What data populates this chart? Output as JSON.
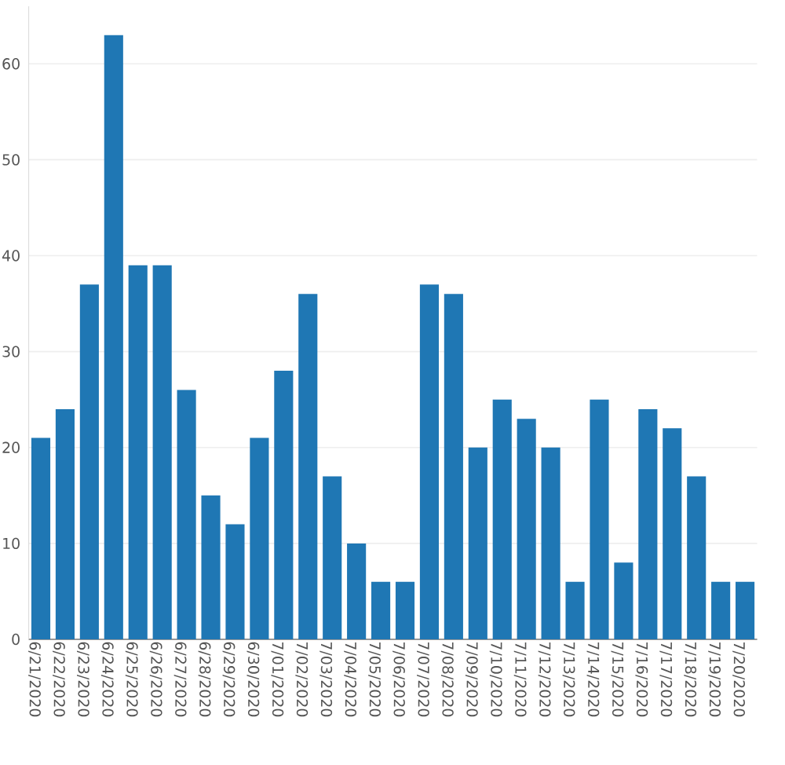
{
  "chart_data": {
    "type": "bar",
    "categories": [
      "6/21/2020",
      "6/22/2020",
      "6/23/2020",
      "6/24/2020",
      "6/25/2020",
      "6/26/2020",
      "6/27/2020",
      "6/28/2020",
      "6/29/2020",
      "6/30/2020",
      "7/01/2020",
      "7/02/2020",
      "7/03/2020",
      "7/04/2020",
      "7/05/2020",
      "7/06/2020",
      "7/07/2020",
      "7/08/2020",
      "7/09/2020",
      "7/10/2020",
      "7/11/2020",
      "7/12/2020",
      "7/13/2020",
      "7/14/2020",
      "7/15/2020",
      "7/16/2020",
      "7/17/2020",
      "7/18/2020",
      "7/19/2020",
      "7/20/2020"
    ],
    "values": [
      21,
      24,
      37,
      63,
      39,
      39,
      26,
      15,
      12,
      21,
      28,
      36,
      17,
      10,
      6,
      6,
      37,
      36,
      20,
      25,
      23,
      20,
      6,
      25,
      8,
      24,
      22,
      17,
      6,
      6
    ],
    "color": "#1f77b4",
    "ylim": [
      0,
      66
    ],
    "yticks": [
      0,
      10,
      20,
      30,
      40,
      50,
      60
    ],
    "grid": "y"
  }
}
